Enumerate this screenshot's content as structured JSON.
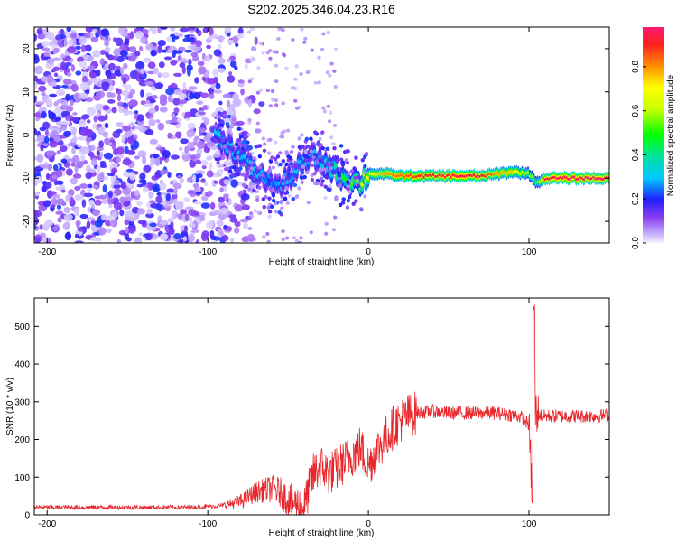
{
  "title": "S202.2025.346.04.23.R16",
  "chart_data": [
    {
      "type": "heatmap",
      "xlabel": "Height of straight line (km)",
      "ylabel": "Frequency (Hz)",
      "xlim": [
        -208,
        150
      ],
      "ylim": [
        -25,
        25
      ],
      "xticks": [
        -200,
        -100,
        0,
        100
      ],
      "yticks": [
        -20,
        -10,
        0,
        10,
        20
      ],
      "colorbar": {
        "label": "Normalized spectral amplitude",
        "range": [
          0,
          0.98
        ],
        "ticks": [
          0.0,
          0.2,
          0.4,
          0.6,
          0.8
        ]
      },
      "ridge": {
        "x": [
          -95,
          -85,
          -75,
          -65,
          -55,
          -45,
          -35,
          -25,
          -15,
          -5,
          0,
          10,
          20,
          30,
          40,
          50,
          60,
          70,
          80,
          90,
          100,
          105,
          110,
          120,
          130,
          140,
          150
        ],
        "frequency": [
          0,
          -3,
          -7,
          -10,
          -12,
          -8,
          -5,
          -7,
          -10,
          -11,
          -9,
          -9,
          -9.5,
          -9.5,
          -9.5,
          -9.5,
          -9.5,
          -9.5,
          -9,
          -8.5,
          -9,
          -11,
          -10,
          -10,
          -10,
          -10,
          -10
        ],
        "amplitude": [
          0.35,
          0.3,
          0.3,
          0.3,
          0.28,
          0.3,
          0.3,
          0.35,
          0.5,
          0.6,
          0.7,
          0.8,
          0.85,
          0.9,
          0.95,
          0.95,
          0.95,
          0.95,
          0.8,
          0.75,
          0.6,
          0.5,
          0.95,
          0.98,
          0.98,
          0.98,
          0.98
        ]
      },
      "noise_region_x": [
        -208,
        -75
      ],
      "noise_amplitude": [
        0.0,
        0.2
      ]
    },
    {
      "type": "line",
      "xlabel": "Height of straight line (km)",
      "ylabel": "SNR (10 * v/v)",
      "xlim": [
        -208,
        150
      ],
      "ylim": [
        0,
        575
      ],
      "xticks": [
        -200,
        -100,
        0,
        100
      ],
      "yticks": [
        0,
        100,
        200,
        300,
        400,
        500
      ],
      "color": "#e8262a",
      "series": [
        {
          "x": [
            -208,
            -190,
            -170,
            -150,
            -130,
            -110,
            -100,
            -90,
            -80,
            -70,
            -60,
            -55,
            -50,
            -45,
            -40,
            -35,
            -30,
            -25,
            -20,
            -15,
            -10,
            -5,
            0,
            5,
            10,
            15,
            20,
            25,
            30,
            35,
            40,
            50,
            60,
            70,
            80,
            90,
            95,
            100,
            102,
            103,
            104,
            106,
            110,
            120,
            130,
            140,
            150
          ],
          "y": [
            20,
            20,
            20,
            20,
            20,
            20,
            22,
            25,
            35,
            60,
            70,
            60,
            40,
            30,
            22,
            100,
            130,
            110,
            120,
            140,
            160,
            180,
            130,
            170,
            200,
            230,
            250,
            265,
            270,
            272,
            275,
            270,
            270,
            270,
            270,
            265,
            260,
            240,
            50,
            530,
            280,
            265,
            262,
            262,
            262,
            262,
            265
          ]
        }
      ]
    }
  ]
}
